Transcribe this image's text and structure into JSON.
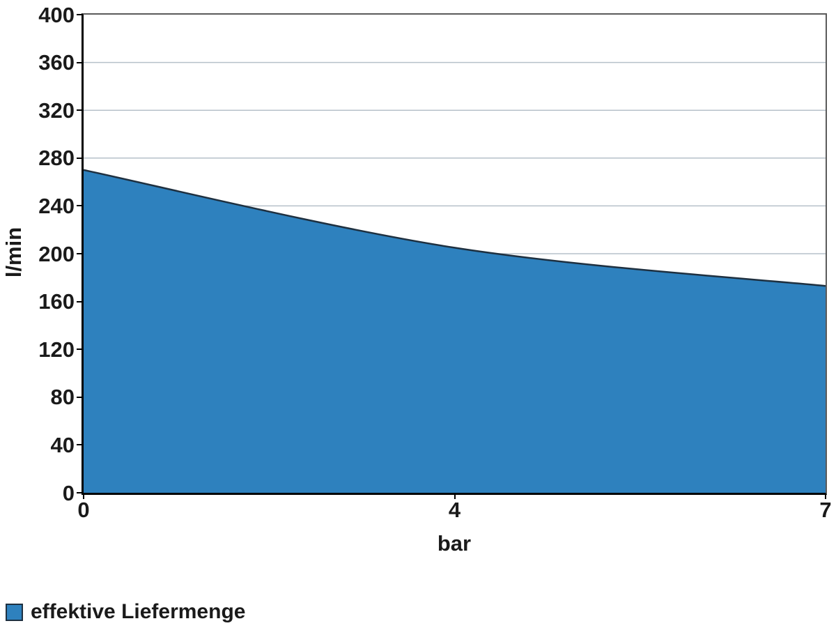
{
  "chart_data": {
    "type": "area",
    "title": "",
    "xlabel": "bar",
    "ylabel": "l/min",
    "x": [
      0,
      4,
      7
    ],
    "x_tick_labels": [
      "0",
      "4",
      "7"
    ],
    "x_positions": [
      0,
      0.5,
      1
    ],
    "series": [
      {
        "name": "effektive Liefermenge",
        "values": [
          270,
          205,
          173
        ]
      }
    ],
    "ylim": [
      0,
      400
    ],
    "y_ticks": [
      0,
      40,
      80,
      120,
      160,
      200,
      240,
      280,
      320,
      360,
      400
    ],
    "grid": true,
    "smooth": true,
    "legend_position": "bottom-left"
  },
  "legend": {
    "label": "effektive Liefermenge"
  },
  "colors": {
    "area_fill": "#2E81BE",
    "area_stroke": "#1E3040",
    "grid": "#b6c0ca",
    "axis": "#000000",
    "frame": "#5a5a5a",
    "text": "#1a1a1a",
    "background": "#ffffff"
  }
}
